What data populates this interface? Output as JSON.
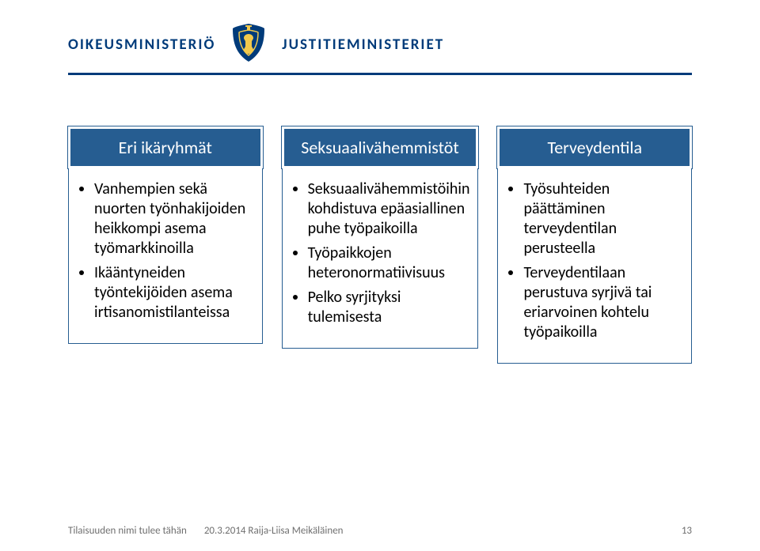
{
  "colors": {
    "brand": "#003b7a",
    "titleBg": "#265d91",
    "titleText": "#ffffff",
    "bodyText": "#000000",
    "footerText": "#6f6f6f",
    "background": "#ffffff",
    "crestYellow": "#f2c94c"
  },
  "header": {
    "ministry1": "OIKEUSMINISTERIÖ",
    "ministry2": "JUSTITIEMINISTERIET"
  },
  "columns": [
    {
      "title": "Eri ikäryhmät",
      "bullets": [
        {
          "text": "Vanhempien sekä nuorten työnhakijoiden heikkompi asema työmarkkinoilla"
        },
        {
          "text": "Ikääntyneiden työntekijöiden asema irtisanomistilanteissa"
        }
      ]
    },
    {
      "title": "Seksuaalivähemmistöt",
      "bullets": [
        {
          "text": "Seksuaalivähemmistöihin kohdistuva epäasiallinen puhe työpaikoilla"
        },
        {
          "text": "Työpaikkojen heteronormatiivisuus"
        },
        {
          "text": "Pelko syrjityksi tulemisesta"
        }
      ]
    },
    {
      "title": "Terveydentila",
      "bullets": [
        {
          "text": "Työsuhteiden päättäminen terveydentilan perusteella"
        },
        {
          "text": "Terveydentilaan perustuva syrjivä tai eriarvoinen kohtelu työpaikoilla"
        }
      ]
    }
  ],
  "footer": {
    "left": "Tilaisuuden nimi tulee tähän",
    "center": "20.3.2014   Raija-Liisa Meikäläinen",
    "page": "13"
  }
}
